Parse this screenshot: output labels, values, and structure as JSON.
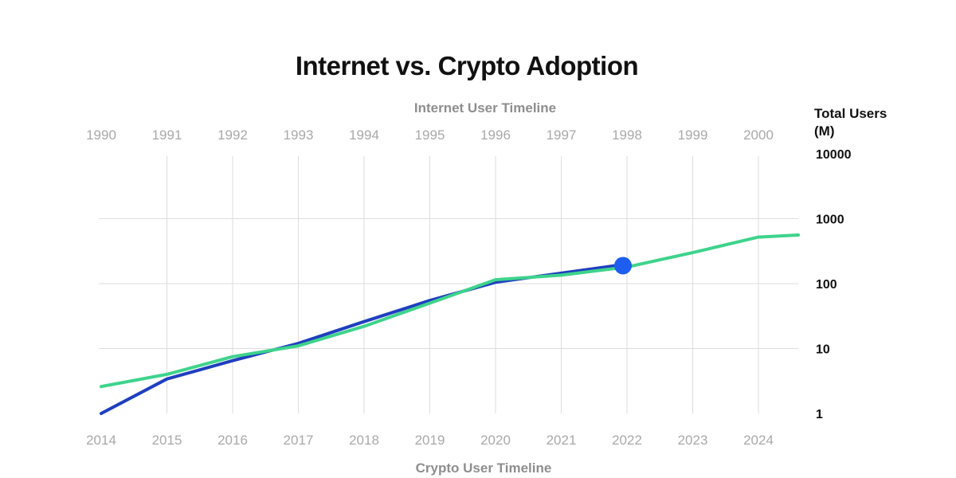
{
  "chart_data": {
    "type": "line",
    "title": "Internet vs. Crypto Adoption",
    "x_top": {
      "label": "Internet User Timeline",
      "ticks": [
        "1990",
        "1991",
        "1992",
        "1993",
        "1994",
        "1995",
        "1996",
        "1997",
        "1998",
        "1999",
        "2000"
      ]
    },
    "x_bottom": {
      "label": "Crypto User Timeline",
      "ticks": [
        "2014",
        "2015",
        "2016",
        "2017",
        "2018",
        "2019",
        "2020",
        "2021",
        "2022",
        "2023",
        "2024"
      ]
    },
    "y": {
      "label_line1": "Total Users",
      "label_line2": "(M)",
      "scale": "log",
      "range": [
        1,
        10000
      ],
      "ticks": [
        "10000",
        "1000",
        "100",
        "10",
        "1"
      ]
    },
    "grid": true,
    "series": [
      {
        "color": "#1f3fbf",
        "x_axis": "bottom",
        "x": [
          "2014",
          "2015",
          "2016",
          "2017",
          "2018",
          "2019",
          "2020",
          "2021",
          "2022"
        ],
        "values": [
          1.0,
          3.4,
          6.5,
          12,
          26,
          55,
          105,
          145,
          200
        ],
        "end_marker": true,
        "marker_color": "#1d5ef0"
      },
      {
        "color": "#3ed38c",
        "x_axis": "top",
        "x": [
          "1990",
          "1991",
          "1992",
          "1993",
          "1994",
          "1995",
          "1996",
          "1997",
          "1998",
          "1999",
          "2000"
        ],
        "values": [
          2.6,
          4.0,
          7.5,
          11,
          22,
          50,
          115,
          135,
          180,
          300,
          520
        ]
      }
    ]
  }
}
